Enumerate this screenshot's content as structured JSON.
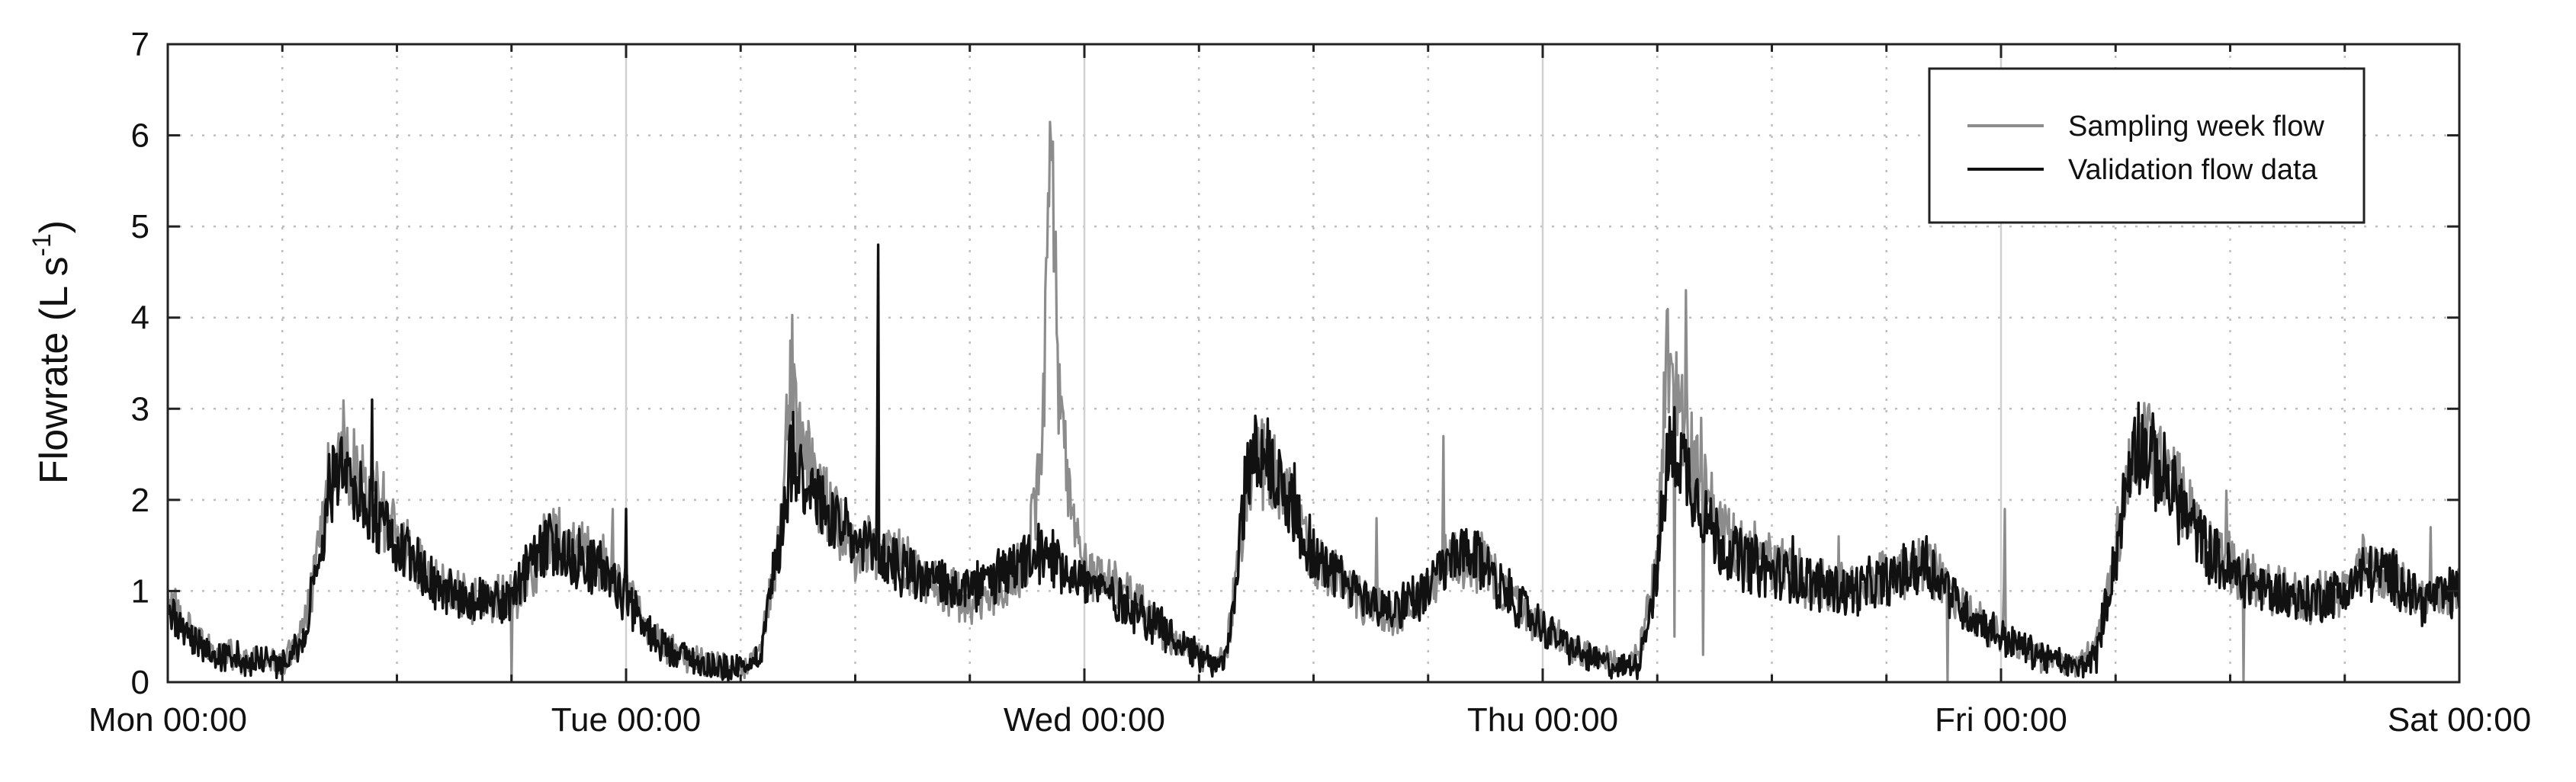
{
  "chart_data": {
    "type": "line",
    "title": "",
    "xlabel": "",
    "ylabel": "Flowrate (L s⁻¹)",
    "ylabel_main": "Flowrate (L s",
    "ylabel_sup": "-1",
    "ylabel_close": ")",
    "xlim": [
      0,
      120
    ],
    "ylim": [
      0,
      7
    ],
    "x_unit": "hours since Mon 00:00",
    "x_ticks": [
      {
        "x": 0,
        "label": "Mon 00:00"
      },
      {
        "x": 24,
        "label": "Tue 00:00"
      },
      {
        "x": 48,
        "label": "Wed 00:00"
      },
      {
        "x": 72,
        "label": "Thu 00:00"
      },
      {
        "x": 96,
        "label": "Fri 00:00"
      },
      {
        "x": 120,
        "label": "Sat 00:00"
      }
    ],
    "y_ticks": [
      0,
      1,
      2,
      3,
      4,
      5,
      6,
      7
    ],
    "grid": true,
    "legend_position": "top-right",
    "series": [
      {
        "name": "Sampling week flow",
        "color": "#8c8c8c",
        "points": [
          [
            0,
            0.9
          ],
          [
            1,
            0.6
          ],
          [
            2,
            0.35
          ],
          [
            4,
            0.25
          ],
          [
            6,
            0.2
          ],
          [
            7,
            0.5
          ],
          [
            8,
            1.5
          ],
          [
            8.5,
            2.4
          ],
          [
            9,
            2.7
          ],
          [
            10,
            2.2
          ],
          [
            11,
            2.0
          ],
          [
            12,
            1.6
          ],
          [
            13,
            1.3
          ],
          [
            14,
            1.1
          ],
          [
            16,
            0.9
          ],
          [
            18,
            0.9
          ],
          [
            19,
            1.2
          ],
          [
            20,
            1.6
          ],
          [
            21,
            1.5
          ],
          [
            22,
            1.4
          ],
          [
            23,
            1.3
          ],
          [
            24,
            1.0
          ],
          [
            25,
            0.6
          ],
          [
            26,
            0.4
          ],
          [
            28,
            0.2
          ],
          [
            30,
            0.15
          ],
          [
            31,
            0.3
          ],
          [
            32,
            1.5
          ],
          [
            32.7,
            3.5
          ],
          [
            33,
            2.7
          ],
          [
            34,
            2.1
          ],
          [
            35,
            1.8
          ],
          [
            36,
            1.5
          ],
          [
            38,
            1.4
          ],
          [
            40,
            1.1
          ],
          [
            42,
            0.9
          ],
          [
            44,
            1.1
          ],
          [
            45,
            1.3
          ],
          [
            45.8,
            2.5
          ],
          [
            46.3,
            6.1
          ],
          [
            46.7,
            3.0
          ],
          [
            47.5,
            1.6
          ],
          [
            48,
            1.3
          ],
          [
            50,
            1.0
          ],
          [
            52,
            0.6
          ],
          [
            54,
            0.3
          ],
          [
            55,
            0.2
          ],
          [
            55.5,
            0.4
          ],
          [
            56,
            1.2
          ],
          [
            56.5,
            2.2
          ],
          [
            57,
            2.5
          ],
          [
            58,
            2.2
          ],
          [
            59,
            1.8
          ],
          [
            60,
            1.4
          ],
          [
            62,
            1.0
          ],
          [
            64,
            0.7
          ],
          [
            66,
            1.0
          ],
          [
            67,
            1.4
          ],
          [
            68,
            1.4
          ],
          [
            69,
            1.3
          ],
          [
            70,
            1.0
          ],
          [
            72,
            0.6
          ],
          [
            74,
            0.3
          ],
          [
            76,
            0.2
          ],
          [
            77,
            0.3
          ],
          [
            78,
            1.3
          ],
          [
            78.5,
            3.6
          ],
          [
            79,
            3.2
          ],
          [
            80,
            2.3
          ],
          [
            81,
            1.8
          ],
          [
            82,
            1.5
          ],
          [
            84,
            1.3
          ],
          [
            86,
            1.1
          ],
          [
            88,
            1.0
          ],
          [
            90,
            1.2
          ],
          [
            91,
            1.2
          ],
          [
            92,
            1.3
          ],
          [
            93,
            1.1
          ],
          [
            94,
            0.8
          ],
          [
            96,
            0.5
          ],
          [
            98,
            0.3
          ],
          [
            100,
            0.15
          ],
          [
            101,
            0.4
          ],
          [
            102,
            1.5
          ],
          [
            103,
            2.6
          ],
          [
            104,
            2.5
          ],
          [
            105,
            2.2
          ],
          [
            106,
            1.8
          ],
          [
            107,
            1.5
          ],
          [
            108,
            1.3
          ],
          [
            110,
            1.0
          ],
          [
            112,
            0.9
          ],
          [
            114,
            1.0
          ],
          [
            115,
            1.3
          ],
          [
            116,
            1.2
          ],
          [
            117,
            1.1
          ],
          [
            118,
            0.9
          ],
          [
            120,
            1.0
          ]
        ],
        "spikes": [
          [
            20.2,
            1.9
          ],
          [
            23.3,
            1.9
          ],
          [
            41.4,
            1.2
          ],
          [
            53.5,
            0.4
          ],
          [
            58.5,
            2.3
          ],
          [
            63.3,
            1.8
          ],
          [
            66.8,
            2.7
          ],
          [
            79.5,
            4.3
          ],
          [
            80.3,
            2.9
          ],
          [
            87.5,
            1.6
          ],
          [
            96.2,
            1.9
          ],
          [
            104.5,
            2.2
          ],
          [
            107.8,
            2.1
          ],
          [
            118.5,
            1.7
          ]
        ],
        "dips": [
          [
            18.0,
            0.0
          ],
          [
            93.2,
            0.0
          ],
          [
            108.7,
            0.0
          ],
          [
            80.4,
            0.3
          ],
          [
            78.9,
            0.5
          ]
        ]
      },
      {
        "name": "Validation flow data",
        "color": "#111111",
        "points": [
          [
            0,
            0.8
          ],
          [
            1,
            0.5
          ],
          [
            2,
            0.3
          ],
          [
            4,
            0.25
          ],
          [
            6,
            0.2
          ],
          [
            7,
            0.4
          ],
          [
            8,
            1.4
          ],
          [
            8.5,
            2.1
          ],
          [
            9,
            2.3
          ],
          [
            10,
            2.0
          ],
          [
            11,
            1.8
          ],
          [
            12,
            1.5
          ],
          [
            13,
            1.3
          ],
          [
            14,
            1.1
          ],
          [
            16,
            0.9
          ],
          [
            18,
            0.9
          ],
          [
            19,
            1.3
          ],
          [
            20,
            1.5
          ],
          [
            21,
            1.4
          ],
          [
            22,
            1.3
          ],
          [
            23,
            1.2
          ],
          [
            24,
            0.9
          ],
          [
            25,
            0.6
          ],
          [
            26,
            0.4
          ],
          [
            28,
            0.2
          ],
          [
            30,
            0.15
          ],
          [
            31,
            0.3
          ],
          [
            32,
            1.5
          ],
          [
            32.7,
            2.6
          ],
          [
            33,
            2.4
          ],
          [
            34,
            2.0
          ],
          [
            35,
            1.7
          ],
          [
            36,
            1.5
          ],
          [
            38,
            1.3
          ],
          [
            40,
            1.1
          ],
          [
            42,
            1.0
          ],
          [
            44,
            1.2
          ],
          [
            45,
            1.3
          ],
          [
            46,
            1.4
          ],
          [
            47,
            1.3
          ],
          [
            48,
            1.1
          ],
          [
            50,
            0.9
          ],
          [
            52,
            0.6
          ],
          [
            54,
            0.3
          ],
          [
            55,
            0.2
          ],
          [
            55.5,
            0.3
          ],
          [
            56,
            1.2
          ],
          [
            56.5,
            2.3
          ],
          [
            57,
            2.6
          ],
          [
            58,
            2.3
          ],
          [
            59,
            1.9
          ],
          [
            60,
            1.4
          ],
          [
            62,
            1.0
          ],
          [
            64,
            0.8
          ],
          [
            66,
            1.0
          ],
          [
            67,
            1.3
          ],
          [
            68,
            1.4
          ],
          [
            69,
            1.3
          ],
          [
            70,
            1.0
          ],
          [
            72,
            0.6
          ],
          [
            74,
            0.3
          ],
          [
            76,
            0.15
          ],
          [
            77,
            0.2
          ],
          [
            78,
            1.2
          ],
          [
            78.5,
            2.4
          ],
          [
            79,
            2.6
          ],
          [
            80,
            2.1
          ],
          [
            81,
            1.6
          ],
          [
            82,
            1.4
          ],
          [
            84,
            1.2
          ],
          [
            86,
            1.1
          ],
          [
            88,
            1.0
          ],
          [
            90,
            1.1
          ],
          [
            91,
            1.2
          ],
          [
            92,
            1.3
          ],
          [
            93,
            1.1
          ],
          [
            94,
            0.8
          ],
          [
            96,
            0.5
          ],
          [
            98,
            0.3
          ],
          [
            100,
            0.15
          ],
          [
            101,
            0.3
          ],
          [
            102,
            1.4
          ],
          [
            103,
            2.7
          ],
          [
            104,
            2.4
          ],
          [
            105,
            2.1
          ],
          [
            106,
            1.7
          ],
          [
            107,
            1.4
          ],
          [
            108,
            1.2
          ],
          [
            110,
            1.0
          ],
          [
            112,
            0.9
          ],
          [
            114,
            1.0
          ],
          [
            115,
            1.2
          ],
          [
            116,
            1.2
          ],
          [
            117,
            1.1
          ],
          [
            118,
            0.9
          ],
          [
            120,
            1.0
          ]
        ],
        "spikes": [
          [
            10.7,
            3.1
          ],
          [
            24.0,
            1.9
          ],
          [
            37.2,
            4.8
          ],
          [
            35.0,
            2.0
          ],
          [
            59.0,
            2.4
          ],
          [
            85.1,
            1.6
          ],
          [
            92.1,
            1.6
          ],
          [
            103.0,
            2.9
          ]
        ],
        "dips": []
      }
    ]
  }
}
